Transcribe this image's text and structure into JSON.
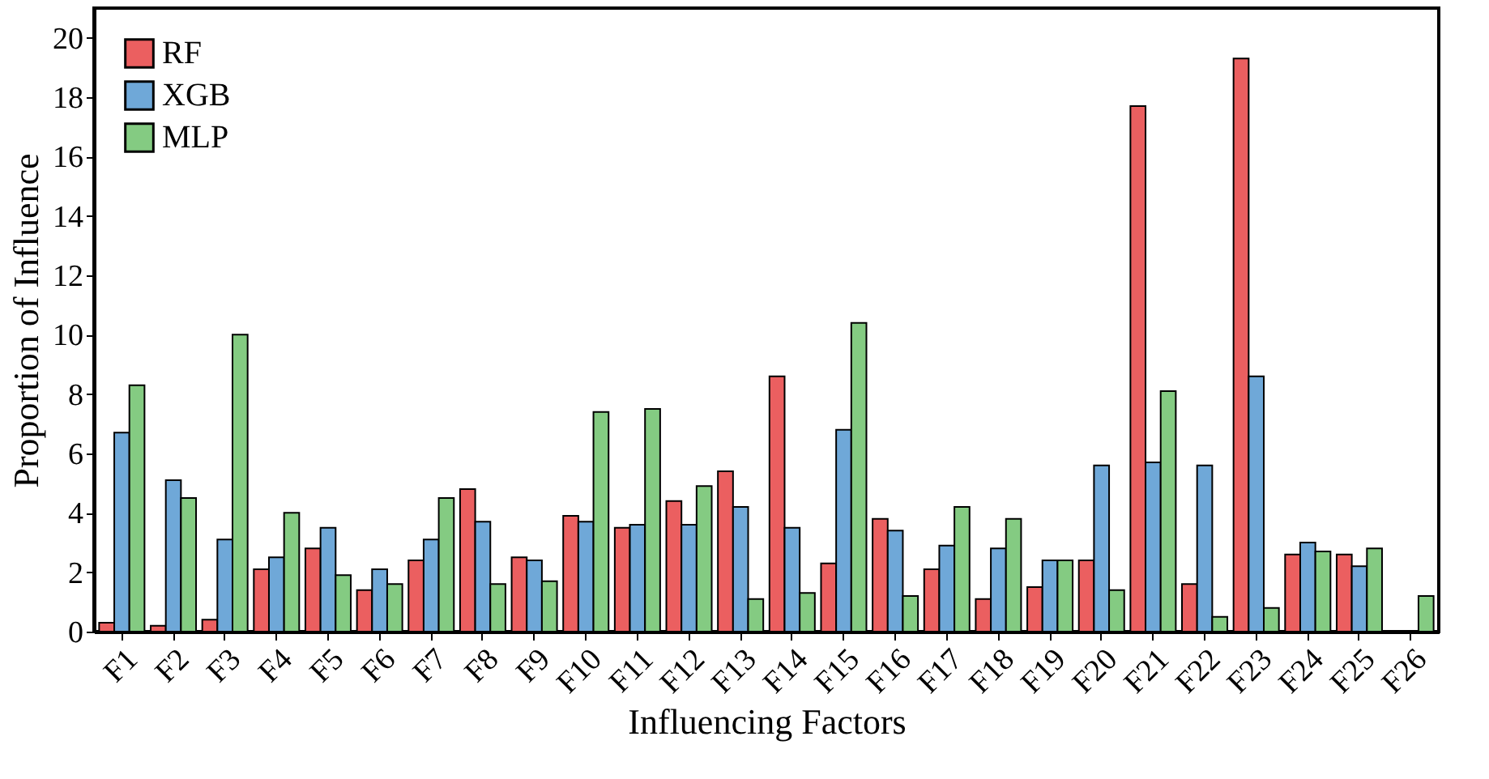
{
  "chart_data": {
    "type": "bar",
    "xlabel": "Influencing Factors",
    "ylabel": "Proportion of Influence",
    "categories": [
      "F1",
      "F2",
      "F3",
      "F4",
      "F5",
      "F6",
      "F7",
      "F8",
      "F9",
      "F10",
      "F11",
      "F12",
      "F13",
      "F14",
      "F15",
      "F16",
      "F17",
      "F18",
      "F19",
      "F20",
      "F21",
      "F22",
      "F23",
      "F24",
      "F25",
      "F26"
    ],
    "series": [
      {
        "name": "RF",
        "color": "#eb5f60",
        "values": [
          0.3,
          0.2,
          0.4,
          2.1,
          2.8,
          1.4,
          2.4,
          4.8,
          2.5,
          3.9,
          3.5,
          4.4,
          5.4,
          8.6,
          2.3,
          3.8,
          2.1,
          1.1,
          1.5,
          2.4,
          17.7,
          1.6,
          19.3,
          2.6,
          2.6,
          null
        ]
      },
      {
        "name": "XGB",
        "color": "#6fa8d8",
        "values": [
          6.7,
          5.1,
          3.1,
          2.5,
          3.5,
          2.1,
          3.1,
          3.7,
          2.4,
          3.7,
          3.6,
          3.6,
          4.2,
          3.5,
          6.8,
          3.4,
          2.9,
          2.8,
          2.4,
          5.6,
          5.7,
          5.6,
          8.6,
          3.0,
          2.2,
          null
        ]
      },
      {
        "name": "MLP",
        "color": "#84cb82",
        "values": [
          8.3,
          4.5,
          10.0,
          4.0,
          1.9,
          1.6,
          4.5,
          1.6,
          1.7,
          7.4,
          7.5,
          4.9,
          1.1,
          1.3,
          10.4,
          1.2,
          4.2,
          3.8,
          2.4,
          1.4,
          8.1,
          0.5,
          0.8,
          2.7,
          2.8,
          1.2
        ]
      }
    ],
    "ylim": [
      0,
      21
    ],
    "yticks": [
      0,
      2,
      4,
      6,
      8,
      10,
      12,
      14,
      16,
      18,
      20
    ],
    "grid": false,
    "legend": "top left"
  }
}
